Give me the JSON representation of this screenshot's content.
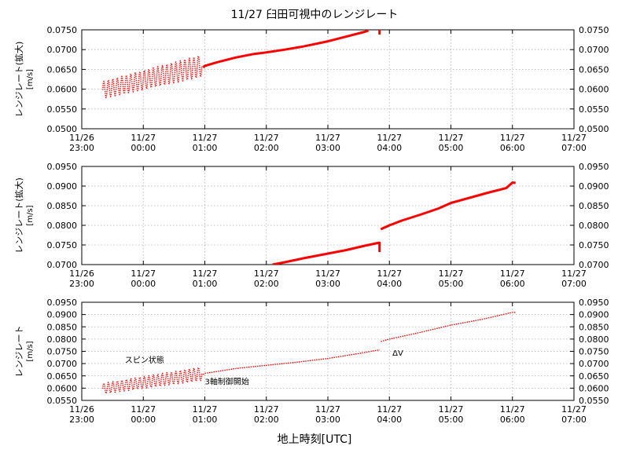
{
  "chart_data": {
    "type": "line",
    "title": "11/27 臼田可視中のレンジレート",
    "xlabel": "地上時刻[UTC]",
    "x_tick_labels": [
      [
        "11/26",
        "23:00"
      ],
      [
        "11/27",
        "00:00"
      ],
      [
        "11/27",
        "01:00"
      ],
      [
        "11/27",
        "02:00"
      ],
      [
        "11/27",
        "03:00"
      ],
      [
        "11/27",
        "04:00"
      ],
      [
        "11/27",
        "05:00"
      ],
      [
        "11/27",
        "06:00"
      ],
      [
        "11/27",
        "07:00"
      ]
    ],
    "x_range_hours": [
      -1,
      7
    ],
    "grid": true,
    "panels": [
      {
        "ylabel": "レンジレート(拡大)",
        "yunit": "[m/s]",
        "ylim": [
          0.05,
          0.075
        ],
        "yticks": [
          "0.0500",
          "0.0550",
          "0.0600",
          "0.0650",
          "0.0700",
          "0.0750"
        ],
        "annotations": [],
        "series": [
          {
            "style": "spin",
            "x": [
              -0.66,
              0.95
            ],
            "mid": [
              0.0598,
              0.0659
            ],
            "amp": [
              0.0021,
              0.0027
            ]
          },
          {
            "style": "line",
            "x": [
              0.97,
              1.0,
              1.2,
              1.5,
              1.8,
              2.0,
              2.3,
              2.6,
              3.0,
              3.3,
              3.6,
              3.66
            ],
            "y": [
              0.0655,
              0.0659,
              0.0668,
              0.068,
              0.0689,
              0.0693,
              0.07,
              0.0708,
              0.0721,
              0.0733,
              0.0745,
              0.0748
            ]
          },
          {
            "style": "line",
            "x": [
              3.84,
              3.84
            ],
            "y": [
              0.0738,
              0.0752
            ]
          }
        ]
      },
      {
        "ylabel": "レンジレート(拡大)",
        "yunit": "[m/s]",
        "ylim": [
          0.07,
          0.095
        ],
        "yticks": [
          "0.0700",
          "0.0750",
          "0.0800",
          "0.0850",
          "0.0900",
          "0.0950"
        ],
        "annotations": [],
        "series": [
          {
            "style": "line",
            "x": [
              2.1,
              2.3,
              2.6,
              3.0,
              3.3,
              3.6,
              3.84
            ],
            "y": [
              0.07,
              0.0706,
              0.0716,
              0.0728,
              0.0737,
              0.0748,
              0.0756
            ]
          },
          {
            "style": "line",
            "x": [
              3.84,
              3.84
            ],
            "y": [
              0.0732,
              0.0758
            ]
          },
          {
            "style": "line",
            "x": [
              3.86,
              3.9,
              4.0,
              4.2,
              4.5,
              4.8,
              5.0,
              5.3,
              5.6,
              5.9,
              6.0,
              6.05
            ],
            "y": [
              0.079,
              0.0793,
              0.08,
              0.0812,
              0.0827,
              0.0843,
              0.0857,
              0.087,
              0.0883,
              0.0895,
              0.0909,
              0.0908
            ]
          }
        ]
      },
      {
        "ylabel": "レンジレート",
        "yunit": "[m/s]",
        "ylim": [
          0.055,
          0.095
        ],
        "yticks": [
          "0.0550",
          "0.0600",
          "0.0650",
          "0.0700",
          "0.0750",
          "0.0800",
          "0.0850",
          "0.0900",
          "0.0950"
        ],
        "annotations": [
          {
            "text": "スピン状態",
            "x": -0.3,
            "y": 0.0703
          },
          {
            "text": "3軸制御開始",
            "x": 1.0,
            "y": 0.0615
          },
          {
            "text": "ΔV",
            "x": 4.05,
            "y": 0.0733
          }
        ],
        "series": [
          {
            "style": "spin",
            "x": [
              -0.66,
              0.95
            ],
            "mid": [
              0.0598,
              0.0659
            ],
            "amp": [
              0.0021,
              0.0027
            ]
          },
          {
            "style": "line",
            "x": [
              0.97,
              1.0,
              1.5,
              2.0,
              2.5,
              3.0,
              3.5,
              3.84
            ],
            "y": [
              0.0655,
              0.066,
              0.068,
              0.0693,
              0.0706,
              0.0721,
              0.0741,
              0.0756
            ]
          },
          {
            "style": "line",
            "x": [
              3.86,
              4.0,
              4.5,
              5.0,
              5.5,
              6.0,
              6.05
            ],
            "y": [
              0.079,
              0.08,
              0.0827,
              0.0857,
              0.088,
              0.0909,
              0.0908
            ]
          }
        ]
      }
    ],
    "colors": {
      "series": "#ff0000",
      "grid": "#b0b0b0",
      "axis": "#000000"
    }
  }
}
